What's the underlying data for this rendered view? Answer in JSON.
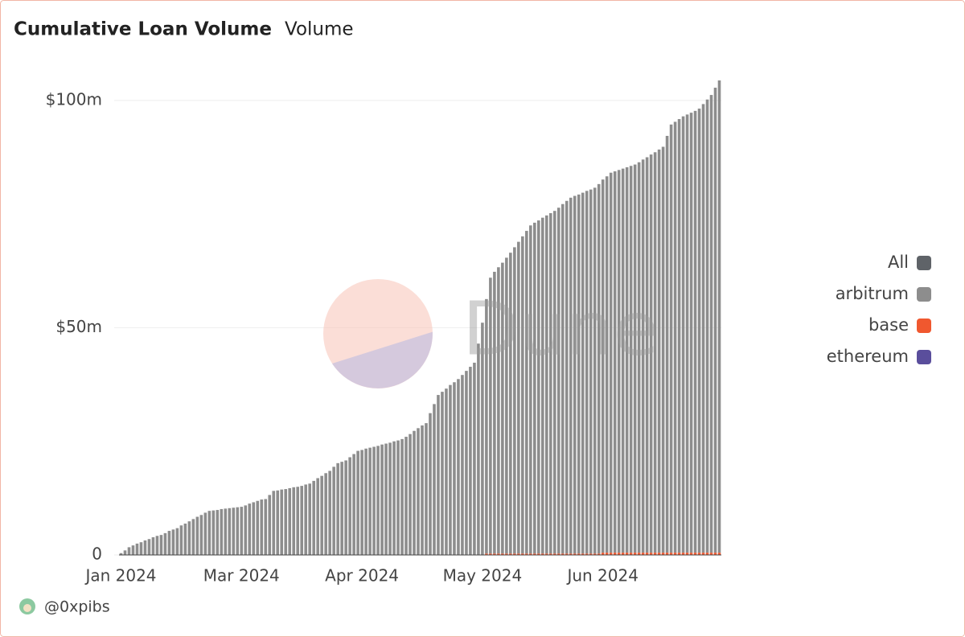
{
  "chart_data": {
    "type": "stacked_bar",
    "title": "Cumulative Loan Volume",
    "subtitle": "Volume",
    "watermark": "Dune",
    "author": "@0xpibs",
    "all_toggle": {
      "name": "All",
      "color": "#5f6368"
    },
    "categories": [
      "Jan 2024",
      null,
      null,
      null,
      null,
      null,
      null,
      null,
      null,
      null,
      null,
      null,
      null,
      null,
      null,
      null,
      null,
      null,
      null,
      null,
      null,
      null,
      null,
      null,
      null,
      null,
      null,
      null,
      null,
      null,
      "Mar 2024",
      null,
      null,
      null,
      null,
      null,
      null,
      null,
      null,
      null,
      null,
      null,
      null,
      null,
      null,
      null,
      null,
      null,
      null,
      null,
      null,
      null,
      null,
      null,
      null,
      null,
      null,
      null,
      null,
      null,
      "Apr 2024",
      null,
      null,
      null,
      null,
      null,
      null,
      null,
      null,
      null,
      null,
      null,
      null,
      null,
      null,
      null,
      null,
      null,
      null,
      null,
      null,
      null,
      null,
      null,
      null,
      null,
      null,
      null,
      null,
      null,
      "May 2024",
      null,
      null,
      null,
      null,
      null,
      null,
      null,
      null,
      null,
      null,
      null,
      null,
      null,
      null,
      null,
      null,
      null,
      null,
      null,
      null,
      null,
      null,
      null,
      null,
      null,
      null,
      null,
      null,
      null,
      "Jun 2024",
      null,
      null,
      null,
      null,
      null,
      null,
      null,
      null,
      null,
      null,
      null,
      null,
      null,
      null,
      null,
      null,
      null,
      null,
      null,
      null,
      null,
      null,
      null,
      null,
      null,
      null,
      null,
      null,
      null
    ],
    "series": [
      {
        "name": "arbitrum",
        "color": "#8d8d8d",
        "values": [
          400000,
          1000000,
          1700000,
          2100000,
          2500000,
          2800000,
          3200000,
          3500000,
          3900000,
          4200000,
          4400000,
          4800000,
          5300000,
          5600000,
          5900000,
          6500000,
          6900000,
          7400000,
          7900000,
          8400000,
          8800000,
          9300000,
          9700000,
          9800000,
          9900000,
          10100000,
          10200000,
          10300000,
          10400000,
          10500000,
          10600000,
          10900000,
          11300000,
          11600000,
          11900000,
          12200000,
          12300000,
          13200000,
          14100000,
          14200000,
          14400000,
          14500000,
          14700000,
          14900000,
          15000000,
          15200000,
          15500000,
          15700000,
          16300000,
          16900000,
          17400000,
          18000000,
          18500000,
          19400000,
          20200000,
          20500000,
          20800000,
          21500000,
          22200000,
          22900000,
          23100000,
          23400000,
          23600000,
          23800000,
          24000000,
          24300000,
          24500000,
          24700000,
          25000000,
          25200000,
          25500000,
          26000000,
          26600000,
          27300000,
          27900000,
          28500000,
          29000000,
          31200000,
          33200000,
          35200000,
          35900000,
          36600000,
          37400000,
          38000000,
          38700000,
          39600000,
          40500000,
          41400000,
          42300000,
          46500000,
          51100000,
          56000000,
          60700000,
          62000000,
          63000000,
          64000000,
          65100000,
          66200000,
          67400000,
          68600000,
          69800000,
          71000000,
          72200000,
          72800000,
          73300000,
          73900000,
          74400000,
          74900000,
          75400000,
          76100000,
          76900000,
          77600000,
          78300000,
          78700000,
          79000000,
          79400000,
          79800000,
          80100000,
          80500000,
          81300000,
          82100000,
          82800000,
          83600000,
          83900000,
          84200000,
          84500000,
          84800000,
          85100000,
          85400000,
          85900000,
          86500000,
          87000000,
          87600000,
          88100000,
          88700000,
          89300000,
          91700000,
          94200000,
          94800000,
          95400000,
          96000000,
          96400000,
          96800000,
          97200000,
          97700000,
          98700000,
          99700000,
          100700000,
          102300000,
          103900000
        ]
      },
      {
        "name": "base",
        "color": "#f0582f",
        "values": [
          0,
          0,
          0,
          0,
          0,
          0,
          0,
          0,
          0,
          0,
          0,
          0,
          0,
          0,
          0,
          0,
          0,
          0,
          0,
          0,
          0,
          0,
          0,
          0,
          0,
          0,
          0,
          0,
          0,
          0,
          0,
          0,
          0,
          0,
          0,
          0,
          0,
          0,
          0,
          0,
          0,
          0,
          0,
          0,
          0,
          0,
          0,
          0,
          0,
          0,
          0,
          0,
          0,
          0,
          0,
          0,
          0,
          0,
          0,
          0,
          0,
          0,
          0,
          0,
          0,
          0,
          0,
          0,
          0,
          0,
          0,
          0,
          0,
          0,
          0,
          0,
          0,
          0,
          0,
          0,
          0,
          0,
          0,
          0,
          0,
          0,
          0,
          0,
          0,
          0,
          0,
          300000,
          300000,
          300000,
          300000,
          300000,
          300000,
          300000,
          300000,
          300000,
          300000,
          300000,
          300000,
          300000,
          300000,
          300000,
          300000,
          300000,
          300000,
          300000,
          300000,
          300000,
          300000,
          300000,
          300000,
          300000,
          300000,
          300000,
          300000,
          300000,
          500000,
          500000,
          500000,
          500000,
          500000,
          500000,
          500000,
          500000,
          500000,
          500000,
          500000,
          500000,
          500000,
          500000,
          500000,
          500000,
          500000,
          500000,
          500000,
          500000,
          500000,
          500000,
          500000,
          500000,
          500000,
          500000,
          500000,
          500000,
          500000,
          500000
        ]
      },
      {
        "name": "ethereum",
        "color": "#5a4e9c",
        "values": [
          0,
          0,
          0,
          0,
          0,
          0,
          0,
          0,
          0,
          0,
          0,
          0,
          0,
          0,
          0,
          0,
          0,
          0,
          0,
          0,
          0,
          0,
          0,
          0,
          0,
          0,
          0,
          0,
          0,
          0,
          0,
          0,
          0,
          0,
          0,
          0,
          0,
          0,
          0,
          0,
          0,
          0,
          0,
          0,
          0,
          0,
          0,
          0,
          0,
          0,
          0,
          0,
          0,
          0,
          0,
          0,
          0,
          0,
          0,
          0,
          0,
          0,
          0,
          0,
          0,
          0,
          0,
          0,
          0,
          0,
          0,
          0,
          0,
          0,
          0,
          0,
          0,
          0,
          0,
          0,
          0,
          0,
          0,
          0,
          0,
          0,
          0,
          0,
          0,
          0,
          0,
          0,
          0,
          0,
          0,
          0,
          0,
          0,
          0,
          0,
          0,
          0,
          0,
          0,
          0,
          0,
          0,
          0,
          0,
          0,
          0,
          0,
          0,
          0,
          0,
          0,
          0,
          0,
          0,
          0,
          0,
          0,
          0,
          0,
          0,
          0,
          0,
          0,
          0,
          0,
          0,
          0,
          0,
          0,
          0,
          0,
          0,
          0,
          0,
          0,
          0,
          0,
          0,
          0,
          0,
          0,
          0,
          0,
          0,
          0
        ]
      }
    ],
    "ylim": [
      0,
      104400000
    ],
    "yticks": [
      0,
      {
        "value": 50000000,
        "label": "$50m"
      },
      {
        "value": 100000000,
        "label": "$100m"
      }
    ],
    "grid": true,
    "legend": "right"
  }
}
